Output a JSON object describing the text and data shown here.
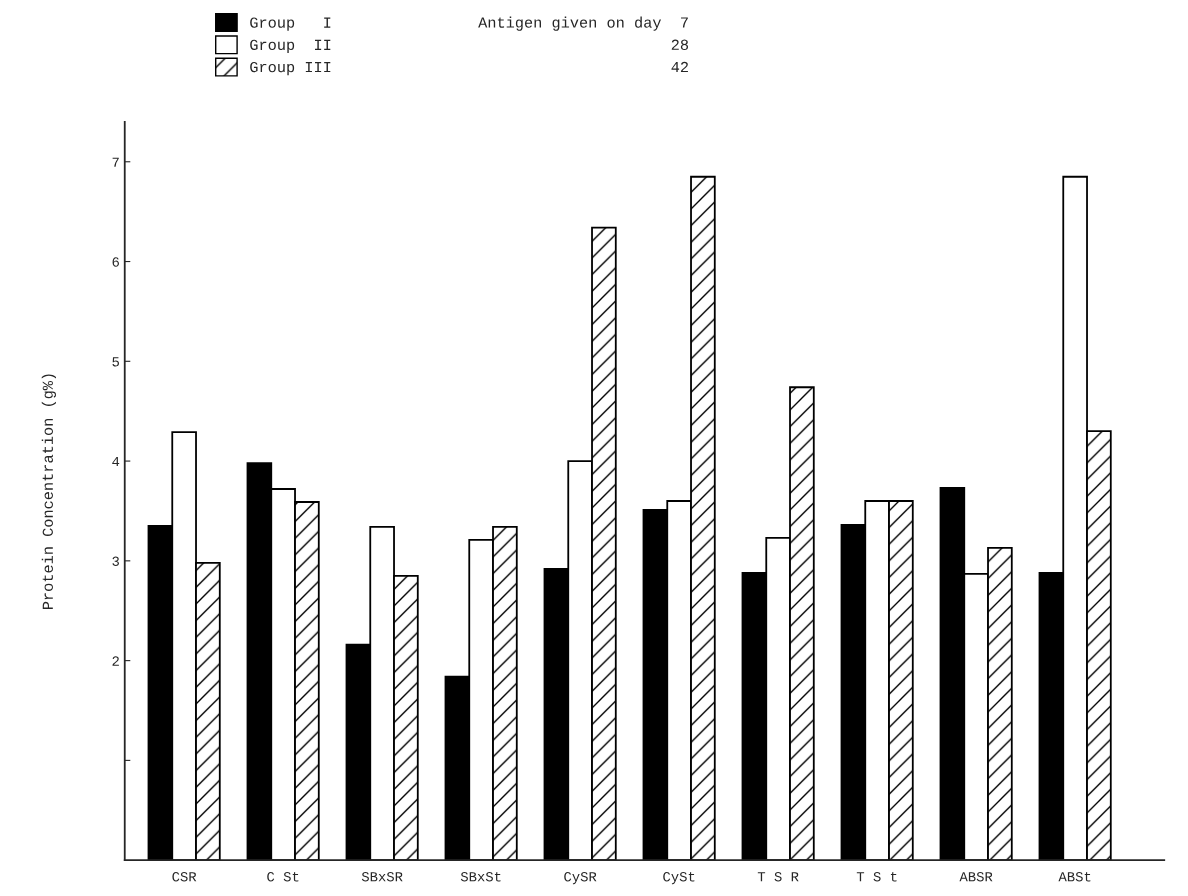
{
  "chart_data": {
    "type": "bar",
    "ylabel": "Protein Concentration (g%)",
    "categories": [
      "CSR",
      "C St",
      "SBxSR",
      "SBxSt",
      "CySR",
      "CySt",
      "T S R",
      "T S t",
      "ABSR",
      "ABSt"
    ],
    "series": [
      {
        "name": "Group   I",
        "color": "#000000",
        "values": [
          3.35,
          3.98,
          2.16,
          1.84,
          2.92,
          3.51,
          2.88,
          3.36,
          3.73,
          2.88
        ]
      },
      {
        "name": "Group  II",
        "color": "#ffffff",
        "values": [
          4.29,
          3.72,
          3.34,
          3.21,
          4.0,
          3.6,
          3.23,
          3.6,
          2.87,
          6.85
        ]
      },
      {
        "name": "Group III",
        "color": "#000000",
        "values": [
          2.98,
          3.59,
          2.85,
          3.34,
          6.34,
          6.85,
          4.74,
          3.6,
          3.13,
          4.3
        ]
      }
    ],
    "annotations": [
      "Antigen given on day  7",
      "28",
      "42"
    ],
    "ylim": [
      0,
      7.4
    ],
    "yticks": [
      {
        "value": 1,
        "label": null
      },
      2,
      3,
      4,
      5,
      6,
      7
    ],
    "legend": "top left",
    "grid": false
  }
}
